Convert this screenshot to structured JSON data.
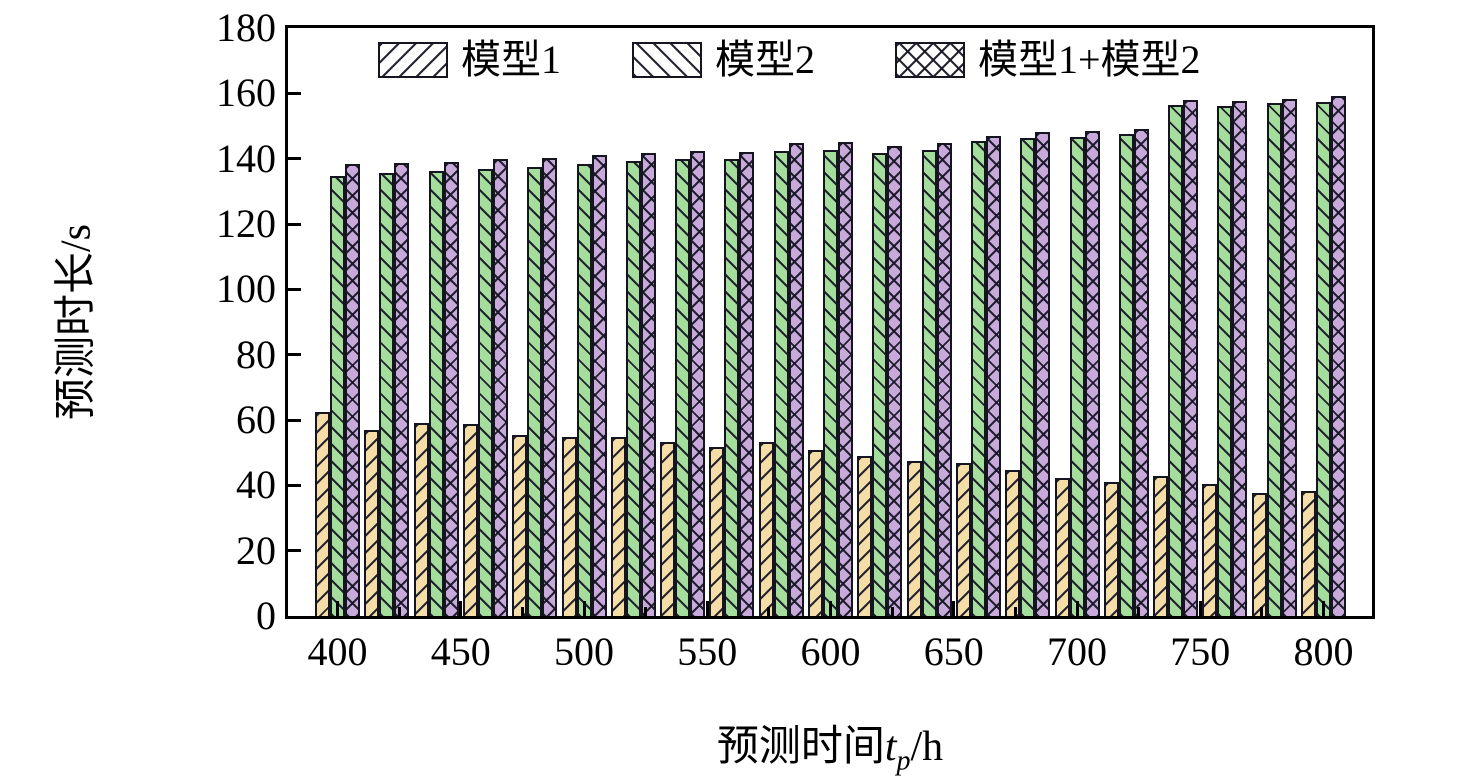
{
  "chart_data": {
    "type": "bar",
    "title": "",
    "ylabel": "预测时长/s",
    "xlabel_parts": {
      "prefix": "预测时间",
      "var": "t",
      "sub": "p",
      "suffix": "/h"
    },
    "ylim": [
      0,
      180
    ],
    "y_ticks": [
      0,
      20,
      40,
      60,
      80,
      100,
      120,
      140,
      160,
      180
    ],
    "x": [
      400,
      420,
      440,
      460,
      480,
      500,
      520,
      540,
      560,
      580,
      600,
      620,
      640,
      660,
      680,
      700,
      720,
      740,
      760,
      780,
      800
    ],
    "x_major_ticks": [
      400,
      450,
      500,
      550,
      600,
      650,
      700,
      750,
      800
    ],
    "x_minor_ticks": [
      425,
      475,
      525,
      575,
      625,
      675,
      725,
      775
    ],
    "grid": false,
    "legend_position": "top-inside",
    "series": [
      {
        "name": "模型1",
        "hatch": "/",
        "color": "#f5dda8",
        "values": [
          62.4,
          57.1,
          59.2,
          58.9,
          55.5,
          54.8,
          54.7,
          53.4,
          51.7,
          53.3,
          50.7,
          48.9,
          47.4,
          46.8,
          44.7,
          42.4,
          41.0,
          42.8,
          40.5,
          37.6,
          38.3
        ]
      },
      {
        "name": "模型2",
        "hatch": "\\",
        "color": "#a5dd9c",
        "values": [
          134.7,
          135.7,
          136.1,
          137.0,
          137.4,
          138.5,
          139.2,
          139.8,
          139.9,
          142.3,
          142.8,
          141.6,
          142.7,
          145.3,
          146.3,
          146.7,
          147.5,
          156.3,
          156.0,
          157.0,
          157.5
        ]
      },
      {
        "name": "模型1+模型2",
        "hatch": "x",
        "color": "#c7a9da",
        "values": [
          138.3,
          138.8,
          139.1,
          139.9,
          140.2,
          141.0,
          141.8,
          142.4,
          142.1,
          144.7,
          145.0,
          143.8,
          144.9,
          147.1,
          148.1,
          148.6,
          149.1,
          158.1,
          157.6,
          158.4,
          159.1
        ]
      }
    ]
  },
  "colors": {
    "hatch_line": "#15151f",
    "bar_edge": "#15151f",
    "spine": "#000000",
    "background": "#ffffff"
  }
}
